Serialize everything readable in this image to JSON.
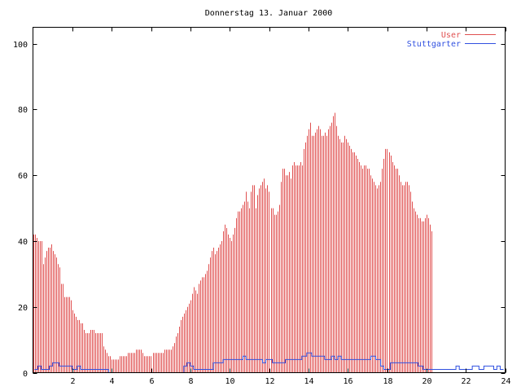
{
  "chart_data": {
    "type": "bar",
    "title": "Donnerstag 13. Januar 2000",
    "xlabel": "",
    "ylabel": "",
    "xlim": [
      0,
      24
    ],
    "ylim": [
      0,
      105
    ],
    "xticks": [
      2,
      4,
      6,
      8,
      10,
      12,
      14,
      16,
      18,
      20,
      22,
      24
    ],
    "yticks": [
      0,
      20,
      40,
      60,
      80,
      100
    ],
    "grid": false,
    "legend": "top-right",
    "sample_interval_hours": 0.0833333,
    "series": [
      {
        "name": "User",
        "style": "impulses",
        "color": "#e05050",
        "x_start": 0,
        "values": [
          42,
          42,
          41,
          40,
          40,
          40,
          33,
          35,
          37,
          38,
          38,
          39,
          37,
          36,
          35,
          33,
          32,
          27,
          27,
          23,
          23,
          23,
          23,
          22,
          19,
          18,
          17,
          16,
          16,
          15,
          15,
          13,
          12,
          12,
          12,
          13,
          13,
          13,
          12,
          12,
          12,
          12,
          12,
          8,
          7,
          6,
          5,
          5,
          4,
          4,
          4,
          4,
          4,
          5,
          5,
          5,
          5,
          5,
          6,
          6,
          6,
          6,
          6,
          7,
          7,
          7,
          7,
          6,
          5,
          5,
          5,
          5,
          5,
          6,
          6,
          6,
          6,
          6,
          6,
          6,
          7,
          7,
          7,
          7,
          7,
          8,
          9,
          11,
          12,
          14,
          16,
          17,
          18,
          19,
          20,
          21,
          22,
          24,
          26,
          25,
          24,
          27,
          28,
          29,
          29,
          30,
          31,
          33,
          35,
          37,
          38,
          36,
          37,
          38,
          39,
          40,
          43,
          45,
          44,
          42,
          41,
          40,
          42,
          44,
          47,
          49,
          49,
          50,
          51,
          52,
          55,
          52,
          50,
          55,
          57,
          57,
          50,
          54,
          56,
          57,
          58,
          59,
          56,
          57,
          55,
          50,
          50,
          48,
          48,
          49,
          51,
          58,
          62,
          62,
          60,
          60,
          61,
          59,
          63,
          64,
          63,
          63,
          63,
          64,
          63,
          68,
          70,
          72,
          74,
          76,
          72,
          72,
          73,
          74,
          75,
          74,
          72,
          72,
          73,
          72,
          74,
          75,
          76,
          78,
          79,
          75,
          72,
          71,
          70,
          70,
          72,
          71,
          70,
          69,
          68,
          67,
          67,
          66,
          65,
          64,
          63,
          62,
          63,
          63,
          62,
          62,
          60,
          59,
          58,
          57,
          56,
          57,
          58,
          62,
          65,
          68,
          68,
          67,
          66,
          64,
          63,
          62,
          62,
          60,
          58,
          57,
          57,
          58,
          58,
          57,
          55,
          52,
          50,
          49,
          48,
          47,
          47,
          46,
          46,
          47,
          48,
          47,
          45,
          43
        ]
      },
      {
        "name": "Stuttgarter",
        "style": "steps",
        "color": "#3050e0",
        "points": [
          [
            0.08,
            1
          ],
          [
            0.25,
            2
          ],
          [
            0.42,
            1
          ],
          [
            0.83,
            2
          ],
          [
            1.0,
            3
          ],
          [
            1.33,
            2
          ],
          [
            2.0,
            1
          ],
          [
            2.25,
            2
          ],
          [
            2.42,
            1
          ],
          [
            3.83,
            1
          ],
          [
            3.84,
            0
          ],
          [
            7.5,
            0
          ],
          [
            7.67,
            2
          ],
          [
            7.83,
            3
          ],
          [
            8.0,
            2
          ],
          [
            8.17,
            1
          ],
          [
            9.17,
            3
          ],
          [
            9.67,
            4
          ],
          [
            10.67,
            5
          ],
          [
            10.83,
            4
          ],
          [
            11.67,
            3
          ],
          [
            11.83,
            4
          ],
          [
            12.17,
            3
          ],
          [
            12.83,
            4
          ],
          [
            13.67,
            5
          ],
          [
            13.92,
            6
          ],
          [
            14.17,
            5
          ],
          [
            14.83,
            4
          ],
          [
            15.17,
            5
          ],
          [
            15.33,
            4
          ],
          [
            15.5,
            5
          ],
          [
            15.67,
            4
          ],
          [
            17.17,
            5
          ],
          [
            17.42,
            4
          ],
          [
            17.67,
            2
          ],
          [
            17.83,
            1
          ],
          [
            18.17,
            3
          ],
          [
            19.58,
            2
          ],
          [
            19.83,
            1
          ],
          [
            21.0,
            1
          ],
          [
            21.5,
            2
          ],
          [
            21.67,
            1
          ],
          [
            22.0,
            1
          ],
          [
            22.33,
            2
          ],
          [
            22.67,
            1
          ],
          [
            22.92,
            2
          ],
          [
            23.42,
            1
          ],
          [
            23.58,
            2
          ],
          [
            23.75,
            1
          ],
          [
            23.92,
            1
          ]
        ]
      }
    ]
  }
}
